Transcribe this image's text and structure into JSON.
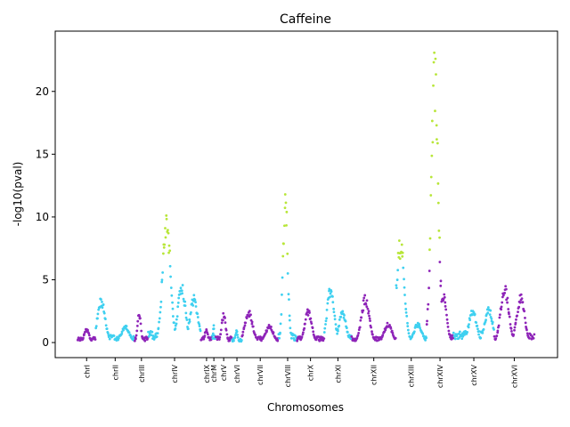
{
  "chart_data": {
    "type": "scatter",
    "title": "Caffeine",
    "xlabel": "Chromosomes",
    "ylabel": "-log10(pval)",
    "ylim": [
      -1.2,
      24.8
    ],
    "yticks": [
      0,
      5,
      10,
      15,
      20
    ],
    "grid": false,
    "legend": "none",
    "colors": {
      "odd": "#8e24b8",
      "even": "#3fd0f0",
      "significant": "#b8e639"
    },
    "significance_threshold": 6.5,
    "chromosomes": [
      {
        "name": "chrI",
        "start": 0.0,
        "end": 0.04,
        "peaks": [
          [
            0.02,
            1.2
          ]
        ],
        "base": 0.35
      },
      {
        "name": "chrII",
        "start": 0.04,
        "end": 0.125,
        "peaks": [
          [
            0.052,
            3.6
          ],
          [
            0.105,
            1.4
          ]
        ],
        "base": 0.5
      },
      {
        "name": "chrIII",
        "start": 0.125,
        "end": 0.155,
        "peaks": [
          [
            0.135,
            2.4
          ]
        ],
        "base": 0.4
      },
      {
        "name": "chrIV",
        "start": 0.155,
        "end": 0.27,
        "peaks": [
          [
            0.195,
            10.8
          ],
          [
            0.228,
            4.8
          ],
          [
            0.255,
            3.8
          ]
        ],
        "base": 0.8
      },
      {
        "name": "chrIX",
        "start": 0.27,
        "end": 0.295,
        "peaks": [
          [
            0.282,
            1.2
          ]
        ],
        "base": 0.4
      },
      {
        "name": "chrM",
        "start": 0.295,
        "end": 0.302,
        "peaks": [
          [
            0.298,
            1.6
          ]
        ],
        "base": 0.5
      },
      {
        "name": "chrV",
        "start": 0.302,
        "end": 0.338,
        "peaks": [
          [
            0.32,
            2.4
          ]
        ],
        "base": 0.4
      },
      {
        "name": "chrVI",
        "start": 0.338,
        "end": 0.36,
        "peaks": [
          [
            0.348,
            1.0
          ]
        ],
        "base": 0.3
      },
      {
        "name": "chrVII",
        "start": 0.36,
        "end": 0.44,
        "peaks": [
          [
            0.375,
            2.6
          ],
          [
            0.42,
            1.4
          ]
        ],
        "base": 0.4
      },
      {
        "name": "chrVIII",
        "start": 0.44,
        "end": 0.48,
        "peaks": [
          [
            0.455,
            12.3
          ]
        ],
        "base": 0.6
      },
      {
        "name": "chrX",
        "start": 0.48,
        "end": 0.54,
        "peaks": [
          [
            0.505,
            2.7
          ]
        ],
        "base": 0.4
      },
      {
        "name": "chrXI",
        "start": 0.54,
        "end": 0.6,
        "peaks": [
          [
            0.554,
            4.7
          ],
          [
            0.58,
            2.6
          ]
        ],
        "base": 0.5
      },
      {
        "name": "chrXII",
        "start": 0.6,
        "end": 0.697,
        "peaks": [
          [
            0.63,
            3.8
          ],
          [
            0.68,
            1.6
          ]
        ],
        "base": 0.4
      },
      {
        "name": "chrXIII",
        "start": 0.697,
        "end": 0.764,
        "peaks": [
          [
            0.707,
            8.6
          ],
          [
            0.745,
            1.6
          ]
        ],
        "base": 0.4
      },
      {
        "name": "chrXIV",
        "start": 0.764,
        "end": 0.823,
        "peaks": [
          [
            0.782,
            23.7
          ],
          [
            0.8,
            4.2
          ]
        ],
        "base": 0.5
      },
      {
        "name": "chrXV",
        "start": 0.823,
        "end": 0.912,
        "peaks": [
          [
            0.865,
            2.7
          ],
          [
            0.9,
            2.9
          ]
        ],
        "base": 0.8
      },
      {
        "name": "chrXVI",
        "start": 0.912,
        "end": 1.0,
        "peaks": [
          [
            0.935,
            4.8
          ],
          [
            0.97,
            3.9
          ]
        ],
        "base": 0.6
      }
    ]
  }
}
